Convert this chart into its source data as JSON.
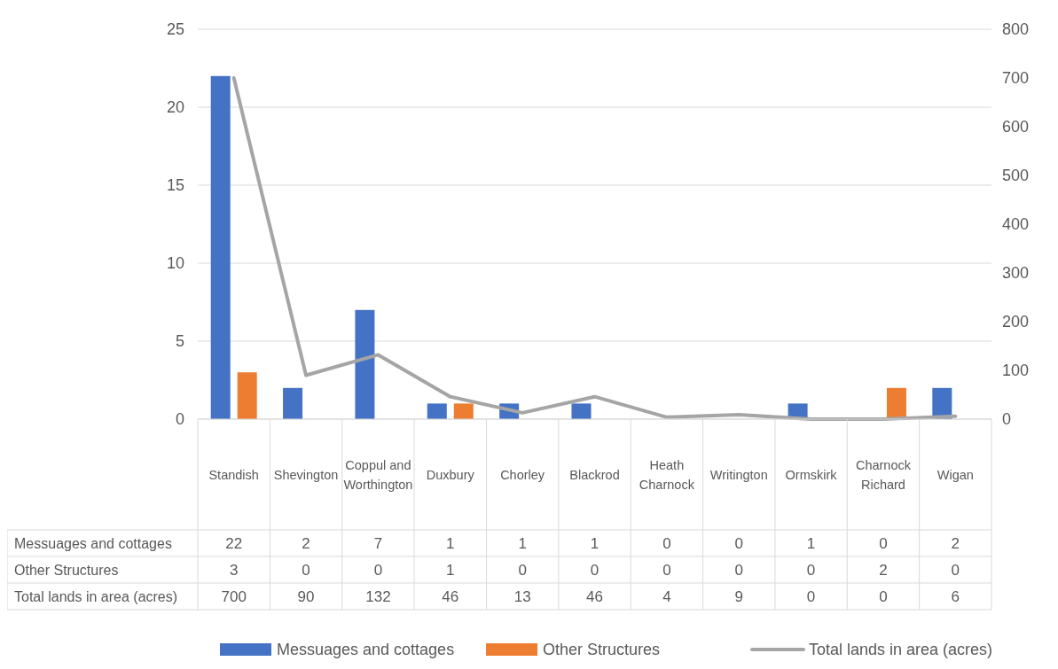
{
  "chart_data": {
    "type": "bar",
    "categories": [
      "Standish",
      "Shevington",
      "Coppul and Worthington",
      "Duxbury",
      "Chorley",
      "Blackrod",
      "Heath Charnock",
      "Writington",
      "Ormskirk",
      "Charnock Richard",
      "Wigan"
    ],
    "series": [
      {
        "name": "Messuages and cottages",
        "color": "#4472c4",
        "values": [
          22,
          2,
          7,
          1,
          1,
          1,
          0,
          0,
          1,
          0,
          2
        ]
      },
      {
        "name": "Other Structures",
        "color": "#ed7d31",
        "values": [
          3,
          0,
          0,
          1,
          0,
          0,
          0,
          0,
          0,
          2,
          0
        ]
      },
      {
        "name": "Total lands in area (acres)",
        "type": "line",
        "axis": "y2",
        "color": "#a5a5a5",
        "values": [
          700,
          90,
          132,
          46,
          13,
          46,
          4,
          9,
          0,
          0,
          6
        ]
      }
    ],
    "ylim": [
      0,
      25
    ],
    "yticks": [
      0,
      5,
      10,
      15,
      20,
      25
    ],
    "y2lim": [
      0,
      800
    ],
    "y2ticks": [
      0,
      100,
      200,
      300,
      400,
      500,
      600,
      700,
      800
    ],
    "grid": "y",
    "legend": "bottom",
    "data_labels": true,
    "marker": "none",
    "line_style": "solid"
  }
}
